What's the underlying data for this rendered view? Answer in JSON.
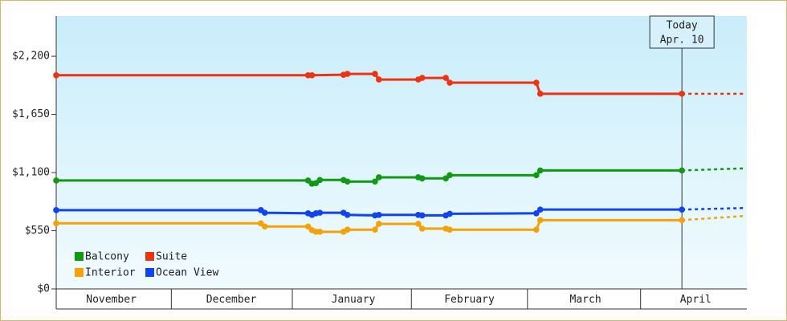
{
  "chart_data": {
    "type": "line",
    "xlim": [
      1,
      176.5
    ],
    "xticks": [
      {
        "value": 15,
        "label": "November"
      },
      {
        "value": 45.5,
        "label": "December"
      },
      {
        "value": 76.5,
        "label": "January"
      },
      {
        "value": 106,
        "label": "February"
      },
      {
        "value": 135.5,
        "label": "March"
      },
      {
        "value": 163.5,
        "label": "April"
      }
    ],
    "ylim": [
      0,
      2580
    ],
    "yticks": [
      {
        "value": 0,
        "label": "$0"
      },
      {
        "value": 550,
        "label": "$550"
      },
      {
        "value": 1100,
        "label": "$1,100"
      },
      {
        "value": 1650,
        "label": "$1,650"
      },
      {
        "value": 2200,
        "label": "$2,200"
      }
    ],
    "today": {
      "x": 160,
      "label": [
        "Today",
        "Apr. 10"
      ]
    },
    "series": [
      {
        "name": "Balcony",
        "color": "#119911",
        "x": [
          1,
          65,
          66,
          67,
          68,
          74,
          75,
          82,
          83,
          93,
          94,
          100,
          101,
          123,
          124,
          160
        ],
        "values": [
          1025,
          1025,
          995,
          1000,
          1030,
          1030,
          1015,
          1015,
          1055,
          1055,
          1045,
          1045,
          1075,
          1075,
          1120,
          1120
        ],
        "forecast_x": [
          176
        ],
        "forecast_values": [
          1140
        ]
      },
      {
        "name": "Suite",
        "color": "#ee3311",
        "x": [
          1,
          65,
          66,
          74,
          75,
          82,
          83,
          93,
          94,
          100,
          101,
          123,
          124,
          160
        ],
        "values": [
          2020,
          2020,
          2020,
          2025,
          2033,
          2033,
          1980,
          1980,
          1995,
          1995,
          1950,
          1950,
          1845,
          1845
        ],
        "forecast_x": [
          176
        ],
        "forecast_values": [
          1845
        ]
      },
      {
        "name": "Interior",
        "color": "#f5a20a",
        "x": [
          1,
          53,
          54,
          65,
          66,
          67,
          68,
          74,
          75,
          82,
          83,
          93,
          94,
          100,
          101,
          123,
          124,
          160
        ],
        "values": [
          620,
          620,
          590,
          590,
          555,
          540,
          540,
          540,
          560,
          560,
          615,
          615,
          570,
          570,
          560,
          560,
          650,
          650
        ],
        "forecast_x": [
          176
        ],
        "forecast_values": [
          690
        ]
      },
      {
        "name": "Ocean View",
        "color": "#1144ee",
        "x": [
          1,
          53,
          54,
          65,
          66,
          67,
          68,
          74,
          75,
          82,
          83,
          93,
          94,
          100,
          101,
          123,
          124,
          160
        ],
        "values": [
          745,
          745,
          720,
          715,
          700,
          715,
          720,
          720,
          700,
          695,
          700,
          700,
          695,
          695,
          710,
          715,
          750,
          750
        ],
        "forecast_x": [
          176
        ],
        "forecast_values": [
          765
        ]
      }
    ]
  }
}
